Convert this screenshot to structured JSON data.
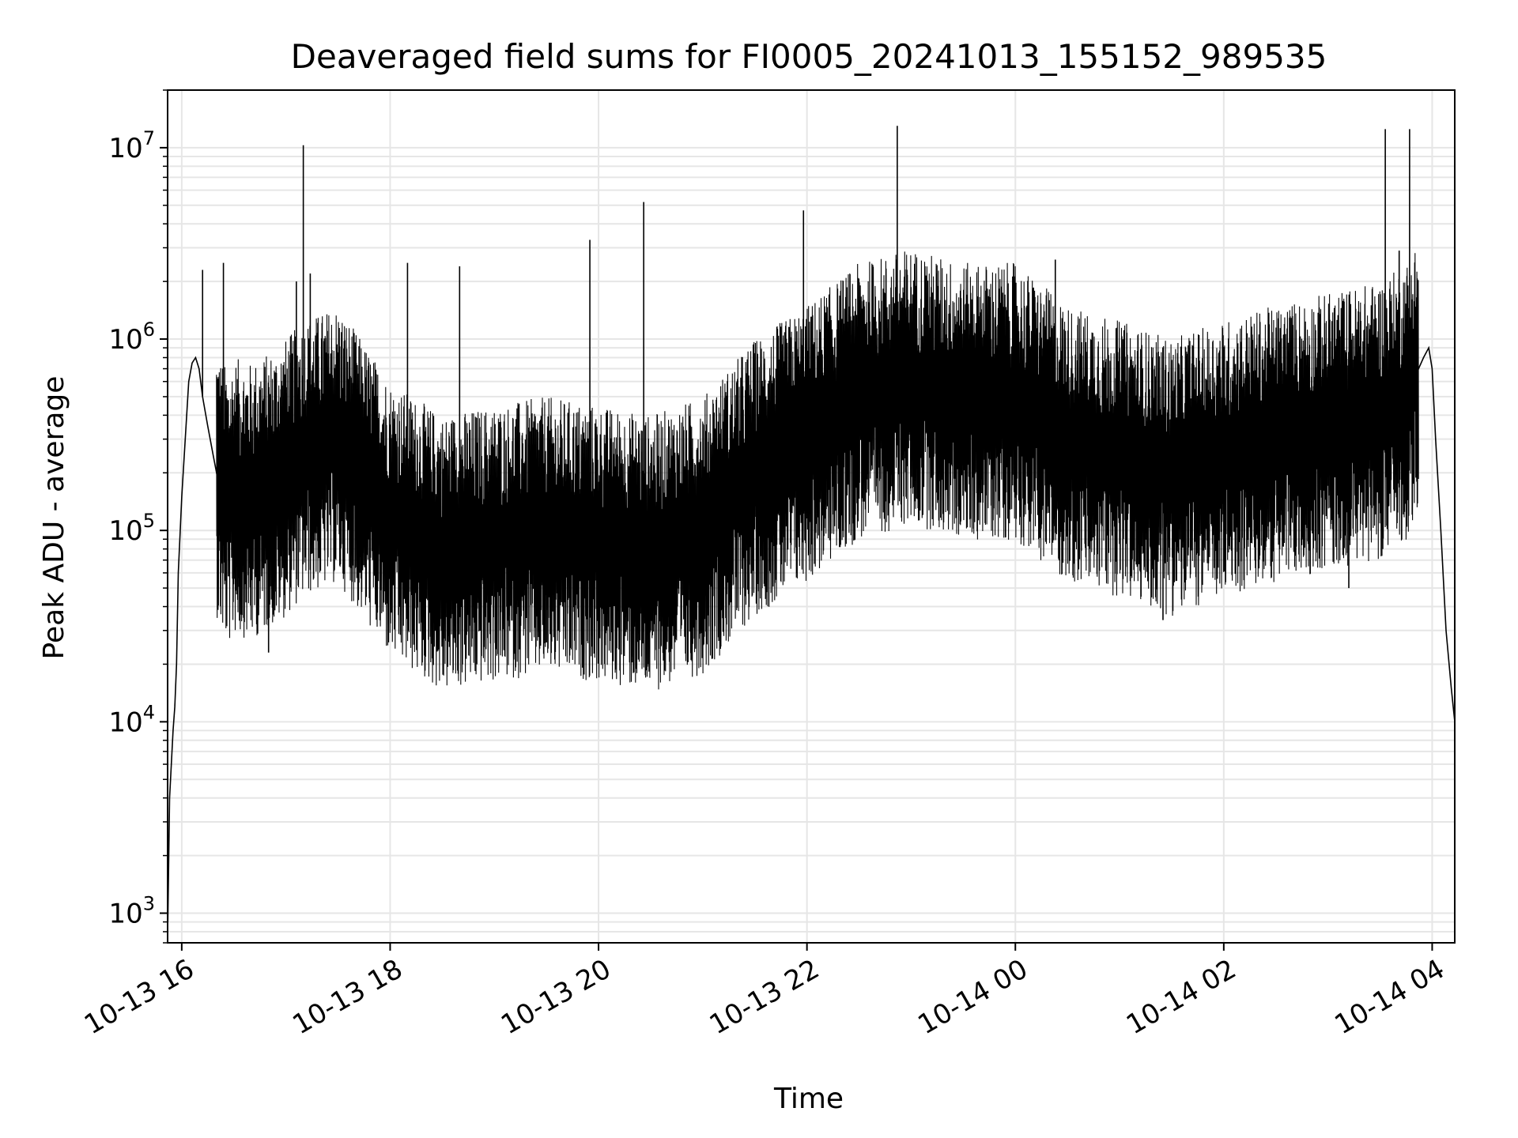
{
  "chart_data": {
    "type": "line",
    "title": "Deaveraged field sums for FI0005_20241013_155152_989535",
    "xlabel": "Time",
    "ylabel": "Peak ADU - average",
    "x_scale": "time",
    "y_scale": "log",
    "xlim": [
      "2024-10-13T15:51:52",
      "2024-10-14T04:13:00"
    ],
    "ylim": [
      700,
      20000000
    ],
    "x_tick_labels": [
      "10-13 16",
      "10-13 18",
      "10-13 20",
      "10-13 22",
      "10-14 00",
      "10-14 02",
      "10-14 04"
    ],
    "x_tick_times": [
      "2024-10-13T16:00:00",
      "2024-10-13T18:00:00",
      "2024-10-13T20:00:00",
      "2024-10-13T22:00:00",
      "2024-10-14T00:00:00",
      "2024-10-14T02:00:00",
      "2024-10-14T04:00:00"
    ],
    "y_tick_values": [
      1000,
      10000,
      100000,
      1000000,
      10000000
    ],
    "y_tick_labels": [
      {
        "base": "10",
        "exp": "3"
      },
      {
        "base": "10",
        "exp": "4"
      },
      {
        "base": "10",
        "exp": "5"
      },
      {
        "base": "10",
        "exp": "6"
      },
      {
        "base": "10",
        "exp": "7"
      }
    ],
    "grid": true,
    "legend": "none",
    "line_color": "#000000",
    "grid_color": "#e6e6e6",
    "series": [
      {
        "x": [
          "2024-10-13T15:52:00",
          "2024-10-13T15:53:00",
          "2024-10-13T15:54:00",
          "2024-10-13T15:55:00",
          "2024-10-13T15:56:00",
          "2024-10-13T15:57:00",
          "2024-10-13T15:58:00",
          "2024-10-13T16:00:00",
          "2024-10-13T16:02:00",
          "2024-10-13T16:04:00",
          "2024-10-13T16:06:00",
          "2024-10-13T16:08:00",
          "2024-10-13T16:10:00",
          "2024-10-13T16:12:00",
          "2024-10-13T16:15:00",
          "2024-10-13T16:18:00",
          "2024-10-13T16:21:00",
          "2024-10-13T16:24:00",
          "2024-10-13T16:27:00",
          "2024-10-13T16:30:00",
          "2024-10-13T16:40:00",
          "2024-10-13T16:55:00",
          "2024-10-13T17:10:00",
          "2024-10-13T17:30:00",
          "2024-10-13T18:00:00",
          "2024-10-13T18:30:00",
          "2024-10-13T19:00:00",
          "2024-10-13T19:30:00",
          "2024-10-13T20:00:00",
          "2024-10-13T20:30:00",
          "2024-10-13T21:00:00",
          "2024-10-13T21:30:00",
          "2024-10-13T22:00:00",
          "2024-10-13T22:30:00",
          "2024-10-13T23:00:00",
          "2024-10-13T23:30:00",
          "2024-10-14T00:00:00",
          "2024-10-14T00:30:00",
          "2024-10-14T01:00:00",
          "2024-10-14T01:30:00",
          "2024-10-14T02:00:00",
          "2024-10-14T02:30:00",
          "2024-10-14T03:00:00",
          "2024-10-14T03:30:00",
          "2024-10-14T03:45:00",
          "2024-10-14T03:55:00",
          "2024-10-14T03:58:00",
          "2024-10-14T04:00:00",
          "2024-10-14T04:02:00",
          "2024-10-14T04:05:00",
          "2024-10-14T04:08:00",
          "2024-10-14T04:11:00",
          "2024-10-14T04:13:00"
        ],
        "y": [
          900,
          4000,
          6000,
          9000,
          12000,
          20000,
          60000,
          150000,
          300000,
          600000,
          750000,
          800000,
          700000,
          500000,
          350000,
          250000,
          180000,
          150000,
          140000,
          160000,
          150000,
          180000,
          250000,
          300000,
          120000,
          80000,
          90000,
          100000,
          90000,
          80000,
          100000,
          200000,
          300000,
          500000,
          600000,
          500000,
          500000,
          300000,
          250000,
          200000,
          250000,
          300000,
          350000,
          400000,
          500000,
          800000,
          900000,
          700000,
          300000,
          100000,
          30000,
          15000,
          10000
        ]
      }
    ],
    "spikes": [
      {
        "x": "2024-10-13T16:12:00",
        "y": 2300000
      },
      {
        "x": "2024-10-13T16:24:00",
        "y": 2500000
      },
      {
        "x": "2024-10-13T17:06:00",
        "y": 2000000
      },
      {
        "x": "2024-10-13T17:10:00",
        "y": 10300000
      },
      {
        "x": "2024-10-13T17:14:00",
        "y": 2200000
      },
      {
        "x": "2024-10-13T18:10:00",
        "y": 2500000
      },
      {
        "x": "2024-10-13T18:40:00",
        "y": 2400000
      },
      {
        "x": "2024-10-13T19:55:00",
        "y": 3300000
      },
      {
        "x": "2024-10-13T20:26:00",
        "y": 5200000
      },
      {
        "x": "2024-10-13T21:58:00",
        "y": 4700000
      },
      {
        "x": "2024-10-13T22:52:00",
        "y": 13000000
      },
      {
        "x": "2024-10-14T00:23:00",
        "y": 2600000
      },
      {
        "x": "2024-10-14T03:33:00",
        "y": 12500000
      },
      {
        "x": "2024-10-14T03:41:00",
        "y": 2900000
      },
      {
        "x": "2024-10-14T03:47:00",
        "y": 12500000
      }
    ],
    "dips": [
      {
        "x": "2024-10-13T16:50:00",
        "y": 23000
      },
      {
        "x": "2024-10-13T18:30:00",
        "y": 30000
      },
      {
        "x": "2024-10-13T19:30:00",
        "y": 26000
      },
      {
        "x": "2024-10-13T20:30:00",
        "y": 30000
      },
      {
        "x": "2024-10-14T01:25:00",
        "y": 34000
      },
      {
        "x": "2024-10-14T03:12:00",
        "y": 50000
      }
    ]
  }
}
